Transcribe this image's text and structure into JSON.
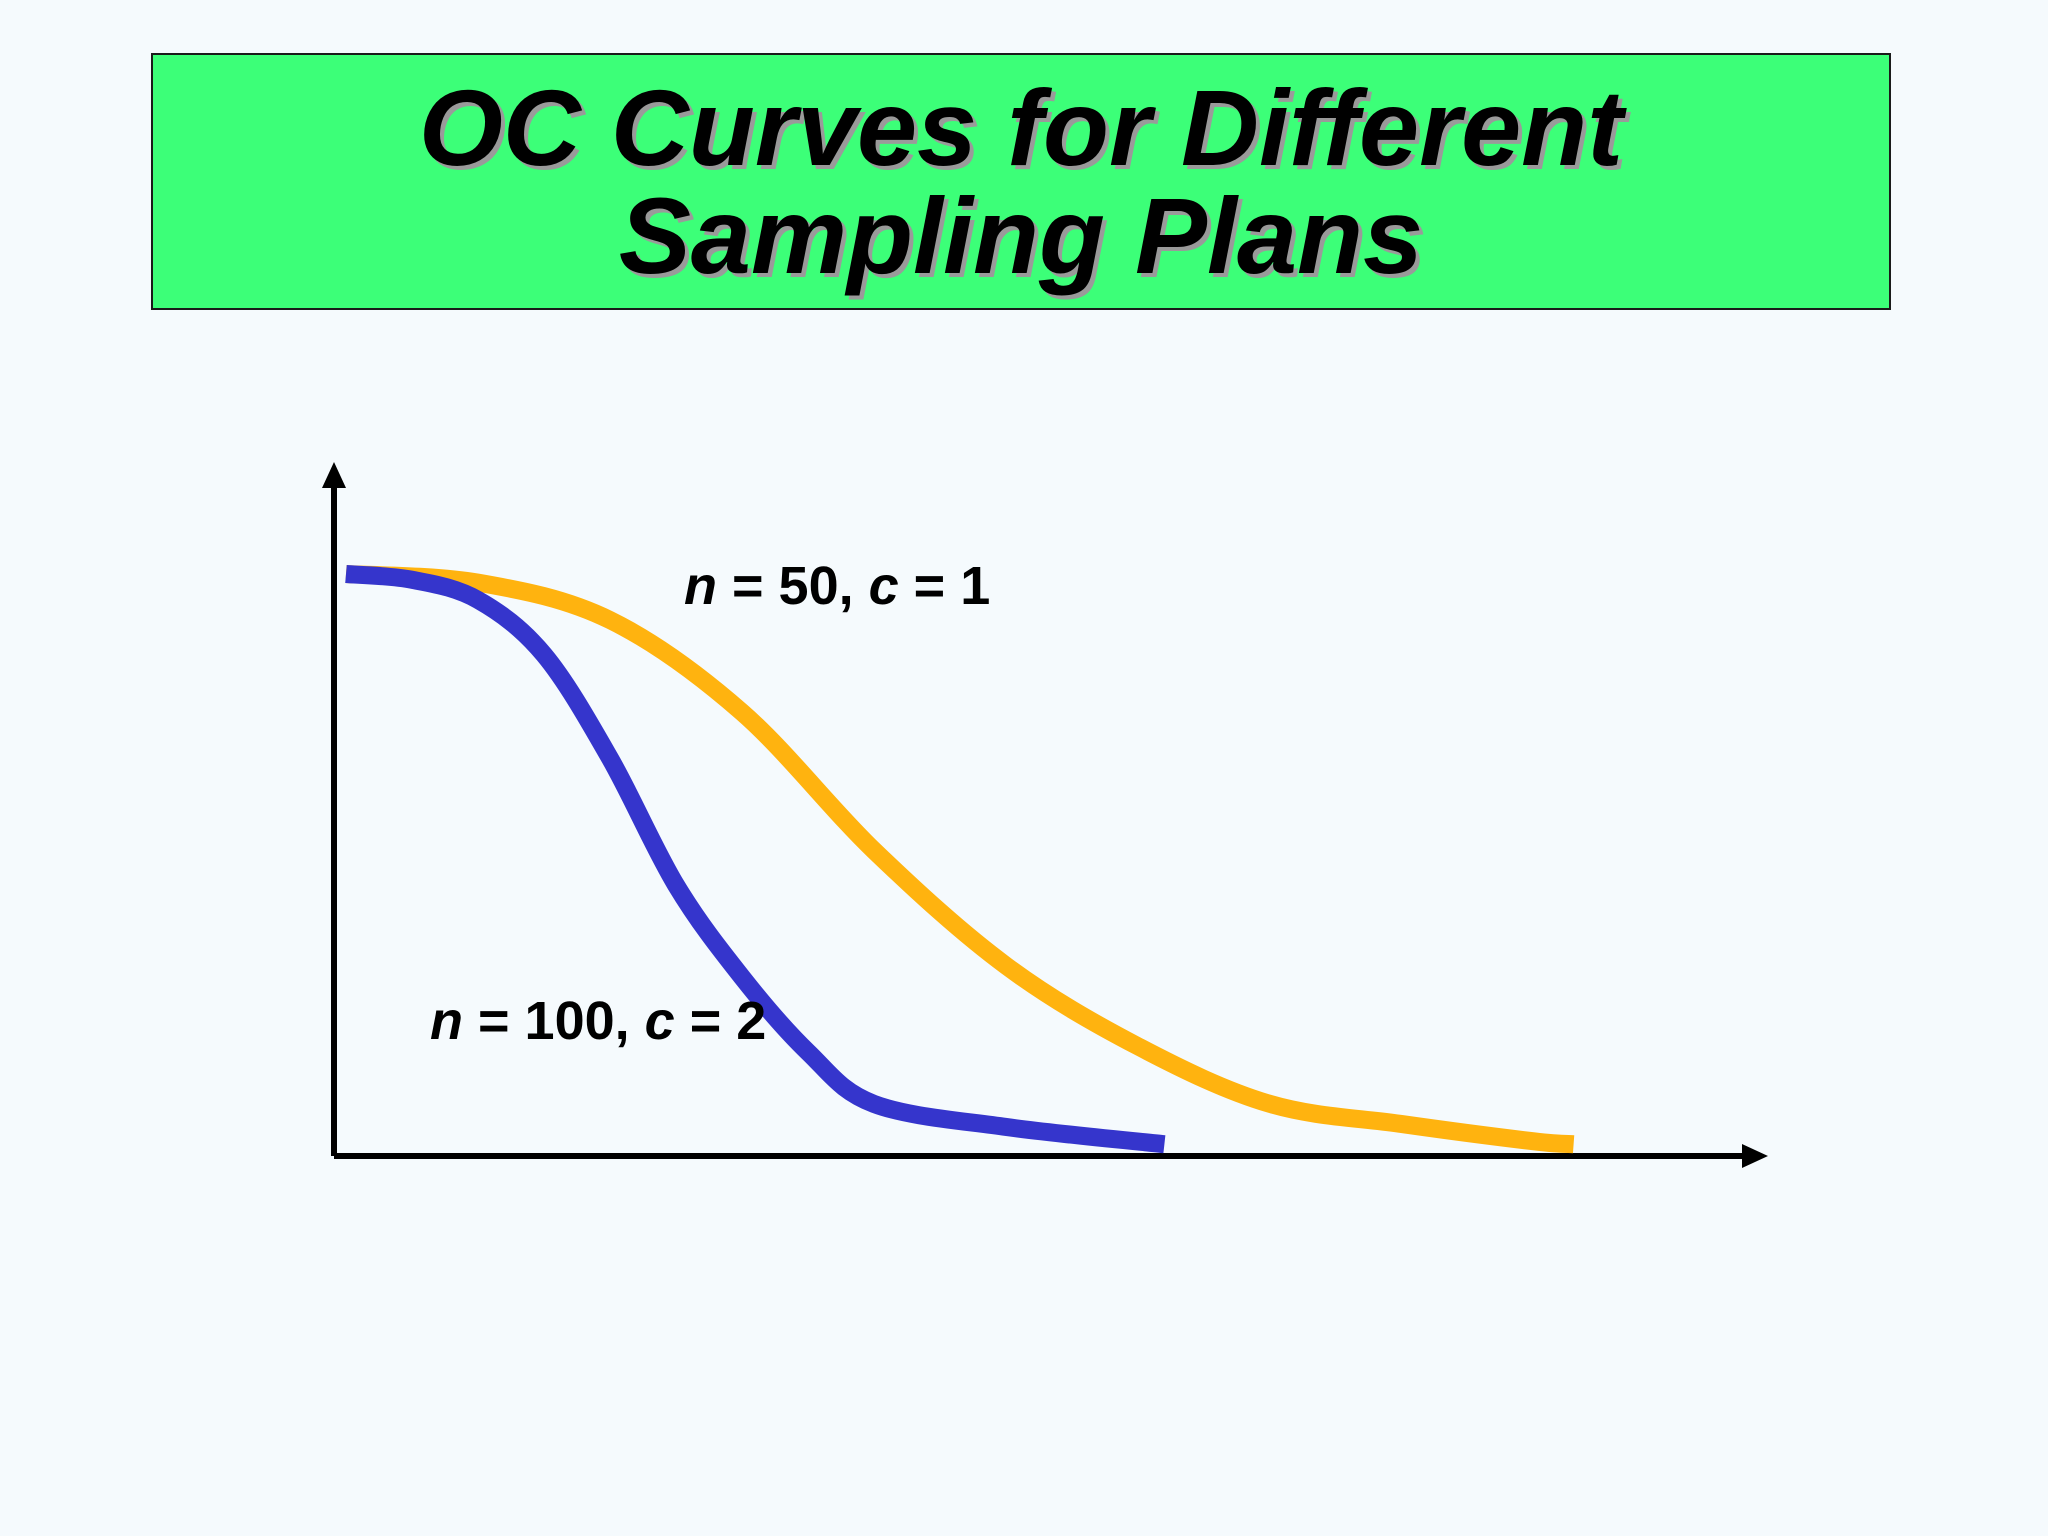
{
  "title": {
    "line1": "OC Curves for Different",
    "line2": "Sampling Plans"
  },
  "colors": {
    "background": "#f5fafd",
    "title_background": "#3cff78",
    "axis": "#000000",
    "series_1": "#ffb30f",
    "series_2": "#3535cc"
  },
  "chart_data": {
    "type": "line",
    "title": "OC Curves for Different Sampling Plans",
    "xlabel": "",
    "ylabel": "",
    "grid": false,
    "legend": "none (inline curve labels)",
    "xlim": [
      0,
      1
    ],
    "ylim": [
      0,
      1
    ],
    "series": [
      {
        "name": "n = 50, c = 1",
        "color": "#ffb30f",
        "points": [
          [
            0.0,
            1.0
          ],
          [
            0.1,
            0.985
          ],
          [
            0.2,
            0.92
          ],
          [
            0.3,
            0.76
          ],
          [
            0.4,
            0.52
          ],
          [
            0.5,
            0.32
          ],
          [
            0.6,
            0.18
          ],
          [
            0.7,
            0.08
          ],
          [
            0.8,
            0.045
          ],
          [
            0.9,
            0.015
          ],
          [
            0.93,
            0.01
          ]
        ]
      },
      {
        "name": "n = 100, c = 2",
        "color": "#3535cc",
        "points": [
          [
            0.0,
            1.0
          ],
          [
            0.05,
            0.99
          ],
          [
            0.1,
            0.955
          ],
          [
            0.15,
            0.86
          ],
          [
            0.2,
            0.68
          ],
          [
            0.25,
            0.46
          ],
          [
            0.3,
            0.3
          ],
          [
            0.35,
            0.17
          ],
          [
            0.4,
            0.08
          ],
          [
            0.5,
            0.04
          ],
          [
            0.62,
            0.01
          ]
        ]
      }
    ],
    "labels": {
      "series_1": {
        "n_var": "n",
        "n_rest": " = 50, ",
        "c_var": "c",
        "c_rest": " = 1"
      },
      "series_2": {
        "n_var": "n",
        "n_rest": " = 100, ",
        "c_var": "c",
        "c_rest": " = 2"
      }
    }
  }
}
